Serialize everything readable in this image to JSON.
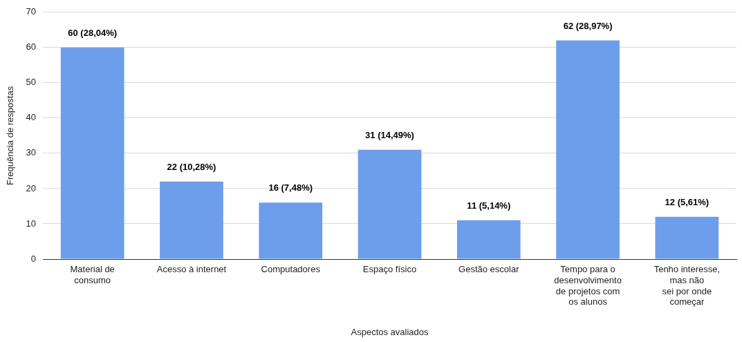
{
  "chart_data": {
    "type": "bar",
    "xlabel": "Aspectos avaliados",
    "ylabel": "Frequência de respostas",
    "categories": [
      "Material de\nconsumo",
      "Acesso à internet",
      "Computadores",
      "Espaço físico",
      "Gestão escolar",
      "Tempo para o\ndesenvolvimento\nde projetos com\nos alunos",
      "Tenho interesse,\nmas não\nsei por onde\ncomeçar"
    ],
    "values": [
      60,
      22,
      16,
      31,
      11,
      62,
      12
    ],
    "value_labels": [
      "60 (28,04%)",
      "22 (10,28%)",
      "16 (7,48%)",
      "31 (14,49%)",
      "11 (5,14%)",
      "62 (28,97%)",
      "12 (5,61%)"
    ],
    "color": "#6d9eeb",
    "ylim": [
      0,
      70
    ],
    "yticks": [
      0,
      10,
      20,
      30,
      40,
      50,
      60,
      70
    ],
    "grid": "y",
    "legend": false
  }
}
